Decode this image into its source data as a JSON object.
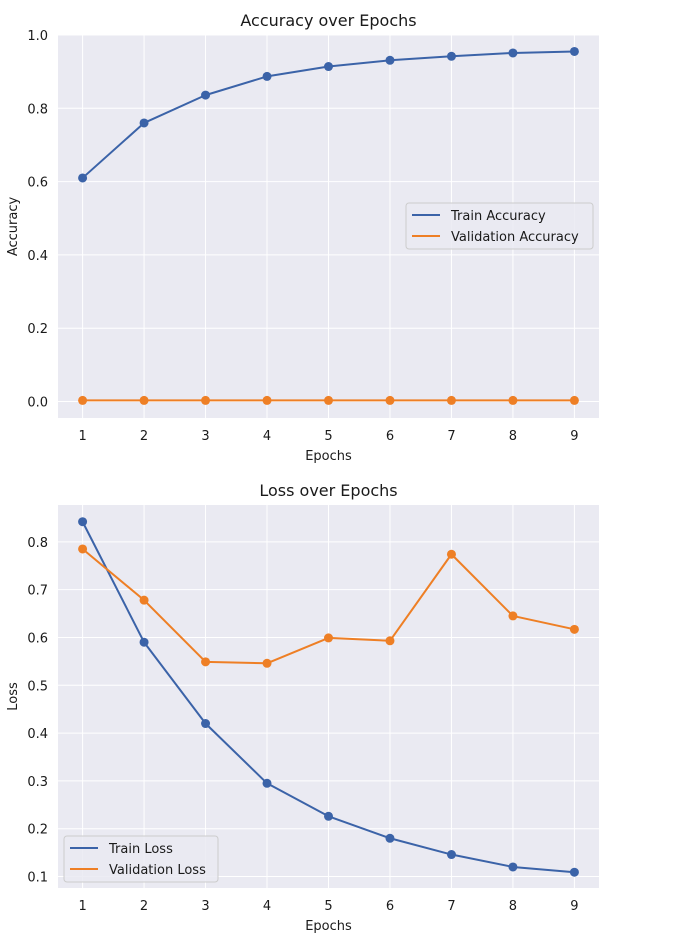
{
  "chart_data": [
    {
      "type": "line",
      "title": "Accuracy over Epochs",
      "xlabel": "Epochs",
      "ylabel": "Accuracy",
      "x": [
        1,
        2,
        3,
        4,
        5,
        6,
        7,
        8,
        9
      ],
      "xlim": [
        0.6,
        9.4
      ],
      "ylim": [
        -0.045,
        1.0
      ],
      "yticks": [
        0.0,
        0.2,
        0.4,
        0.6,
        0.8,
        1.0
      ],
      "ytick_labels": [
        "0.0",
        "0.2",
        "0.4",
        "0.6",
        "0.8",
        "1.0"
      ],
      "legend": "center-right",
      "grid": true,
      "series": [
        {
          "name": "Train Accuracy",
          "color": "#3b63a8",
          "values": [
            0.61,
            0.76,
            0.836,
            0.887,
            0.914,
            0.931,
            0.942,
            0.951,
            0.955
          ]
        },
        {
          "name": "Validation Accuracy",
          "color": "#ee7f25",
          "values": [
            0.003,
            0.003,
            0.003,
            0.003,
            0.003,
            0.003,
            0.003,
            0.003,
            0.003
          ]
        }
      ]
    },
    {
      "type": "line",
      "title": "Loss over Epochs",
      "xlabel": "Epochs",
      "ylabel": "Loss",
      "x": [
        1,
        2,
        3,
        4,
        5,
        6,
        7,
        8,
        9
      ],
      "xlim": [
        0.6,
        9.4
      ],
      "ylim": [
        0.076,
        0.877
      ],
      "yticks": [
        0.1,
        0.2,
        0.3,
        0.4,
        0.5,
        0.6,
        0.7,
        0.8
      ],
      "ytick_labels": [
        "0.1",
        "0.2",
        "0.3",
        "0.4",
        "0.5",
        "0.6",
        "0.7",
        "0.8"
      ],
      "legend": "lower-left",
      "grid": true,
      "series": [
        {
          "name": "Train Loss",
          "color": "#3b63a8",
          "values": [
            0.842,
            0.59,
            0.42,
            0.295,
            0.226,
            0.18,
            0.146,
            0.12,
            0.109
          ]
        },
        {
          "name": "Validation Loss",
          "color": "#ee7f25",
          "values": [
            0.785,
            0.678,
            0.549,
            0.546,
            0.599,
            0.593,
            0.774,
            0.645,
            0.617
          ]
        }
      ]
    }
  ]
}
